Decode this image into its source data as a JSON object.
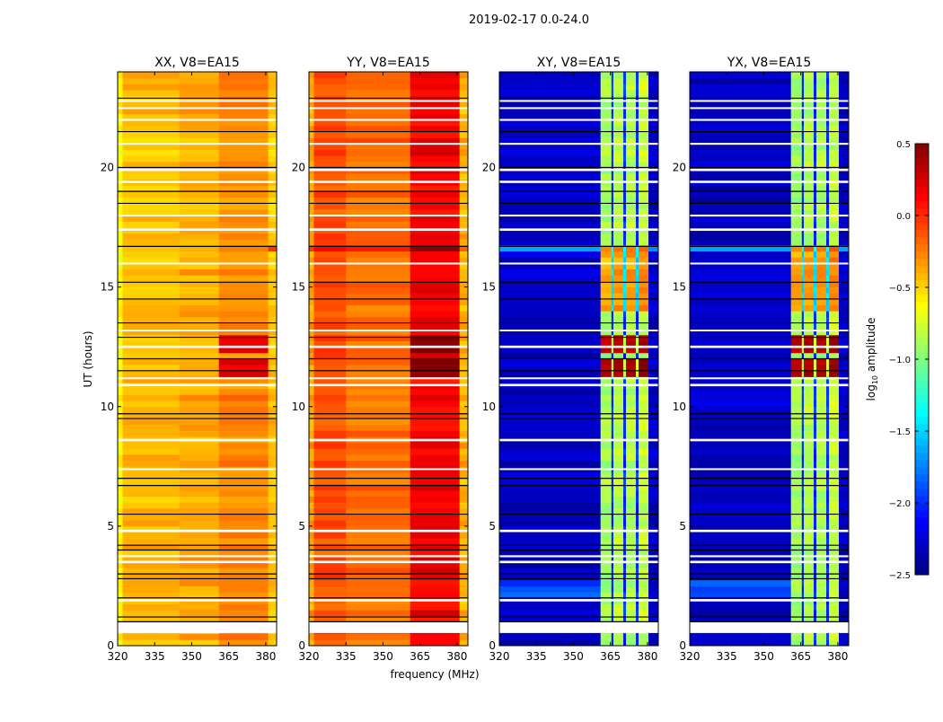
{
  "chart_data": {
    "type": "heatmap",
    "title": "2019-02-17 0.0-24.0",
    "xlabel": "frequency (MHz)",
    "ylabel": "UT (hours)",
    "xlim": [
      320,
      384.4
    ],
    "ylim": [
      0,
      24
    ],
    "xticks": [
      320,
      335,
      350,
      365,
      380
    ],
    "yticks": [
      0,
      5,
      10,
      15,
      20
    ],
    "colorbar": {
      "label_main": "log",
      "label_sub": "10",
      "label_rest": " amplitude",
      "range": [
        -2.5,
        0.5
      ],
      "ticks": [
        "0.5",
        "0.0",
        "−0.5",
        "−1.0",
        "−1.5",
        "−2.0",
        "−2.5"
      ],
      "tick_values": [
        0.5,
        0.0,
        -0.5,
        -1.0,
        -1.5,
        -2.0,
        -2.5
      ],
      "colormap": "jet"
    },
    "flagged_hours": [
      [
        0.53,
        0.98
      ],
      [
        1.85,
        1.95
      ],
      [
        3.45,
        3.55
      ],
      [
        3.7,
        3.78
      ],
      [
        4.75,
        4.85
      ],
      [
        7.35,
        7.42
      ],
      [
        8.55,
        8.65
      ],
      [
        10.85,
        10.95
      ],
      [
        11.15,
        11.22
      ],
      [
        12.45,
        12.55
      ],
      [
        13.15,
        13.22
      ],
      [
        15.95,
        16.02
      ],
      [
        17.35,
        17.45
      ],
      [
        17.95,
        18.03
      ],
      [
        19.35,
        19.45
      ],
      [
        19.85,
        19.95
      ],
      [
        20.95,
        21.03
      ],
      [
        21.95,
        22.03
      ],
      [
        22.45,
        22.52
      ],
      [
        22.75,
        22.82
      ]
    ],
    "scan_boundaries": [
      1.0,
      1.2,
      2.0,
      2.8,
      3.0,
      4.0,
      4.2,
      5.5,
      6.7,
      7.0,
      9.5,
      9.7,
      11.5,
      12.0,
      12.9,
      13.5,
      14.5,
      15.2,
      16.7,
      18.5,
      19.0,
      20.0,
      21.5,
      22.9
    ],
    "panels": [
      {
        "title": "XX, V8=EA15",
        "freq_segments": [
          [
            320,
            322,
            -0.6
          ],
          [
            322,
            345,
            -0.42
          ],
          [
            345,
            361,
            -0.38
          ],
          [
            361,
            381,
            -0.28
          ],
          [
            381,
            384.4,
            -0.45
          ]
        ],
        "events": [
          [
            11.3,
            12.0,
            361,
            381,
            0.5
          ],
          [
            12.3,
            13.0,
            361,
            381,
            0.5
          ],
          [
            16.6,
            16.8,
            376,
            384.4,
            0.4
          ]
        ]
      },
      {
        "title": "YY, V8=EA15",
        "freq_segments": [
          [
            320,
            322,
            -0.35
          ],
          [
            322,
            335,
            -0.1
          ],
          [
            335,
            361,
            -0.2
          ],
          [
            361,
            381,
            0.15
          ],
          [
            381,
            384.4,
            -0.4
          ]
        ],
        "events": [
          [
            11.3,
            12.0,
            361,
            381,
            0.4
          ],
          [
            12.3,
            13.0,
            361,
            381,
            0.4
          ],
          [
            16.6,
            16.8,
            320,
            384.4,
            0.2
          ]
        ]
      },
      {
        "title": "XY, V8=EA15",
        "freq_segments": [
          [
            320,
            361,
            -2.3
          ],
          [
            361,
            365.4,
            -0.9
          ],
          [
            365.4,
            366.2,
            -2.0
          ],
          [
            366.2,
            370.2,
            -0.85
          ],
          [
            370.2,
            371.3,
            -2.0
          ],
          [
            371.3,
            375.3,
            -0.85
          ],
          [
            375.3,
            376.4,
            -2.0
          ],
          [
            376.4,
            380.4,
            -0.8
          ],
          [
            380.4,
            384.4,
            -2.3
          ]
        ],
        "events": [
          [
            11.3,
            12.0,
            361,
            381,
            1.2
          ],
          [
            12.3,
            13.0,
            361,
            381,
            1.2
          ],
          [
            11.4,
            11.6,
            320,
            361,
            0.9
          ],
          [
            14.0,
            16.5,
            361,
            381,
            0.5
          ],
          [
            16.6,
            16.8,
            320,
            384.4,
            0.7
          ],
          [
            2.0,
            2.8,
            320,
            350,
            0.4
          ]
        ]
      },
      {
        "title": "YX, V8=EA15",
        "freq_segments": [
          [
            320,
            361,
            -2.3
          ],
          [
            361,
            365.4,
            -0.9
          ],
          [
            365.4,
            366.2,
            -2.0
          ],
          [
            366.2,
            370.2,
            -0.85
          ],
          [
            370.2,
            371.3,
            -2.0
          ],
          [
            371.3,
            375.3,
            -0.85
          ],
          [
            375.3,
            376.4,
            -2.0
          ],
          [
            376.4,
            380.4,
            -0.8
          ],
          [
            380.4,
            384.4,
            -2.3
          ]
        ],
        "events": [
          [
            11.3,
            12.0,
            361,
            381,
            1.2
          ],
          [
            12.3,
            13.0,
            361,
            381,
            1.2
          ],
          [
            11.4,
            11.6,
            320,
            361,
            0.9
          ],
          [
            14.0,
            16.5,
            361,
            381,
            0.5
          ],
          [
            16.6,
            16.8,
            320,
            384.4,
            0.7
          ],
          [
            2.0,
            2.8,
            320,
            350,
            0.4
          ]
        ]
      }
    ]
  }
}
